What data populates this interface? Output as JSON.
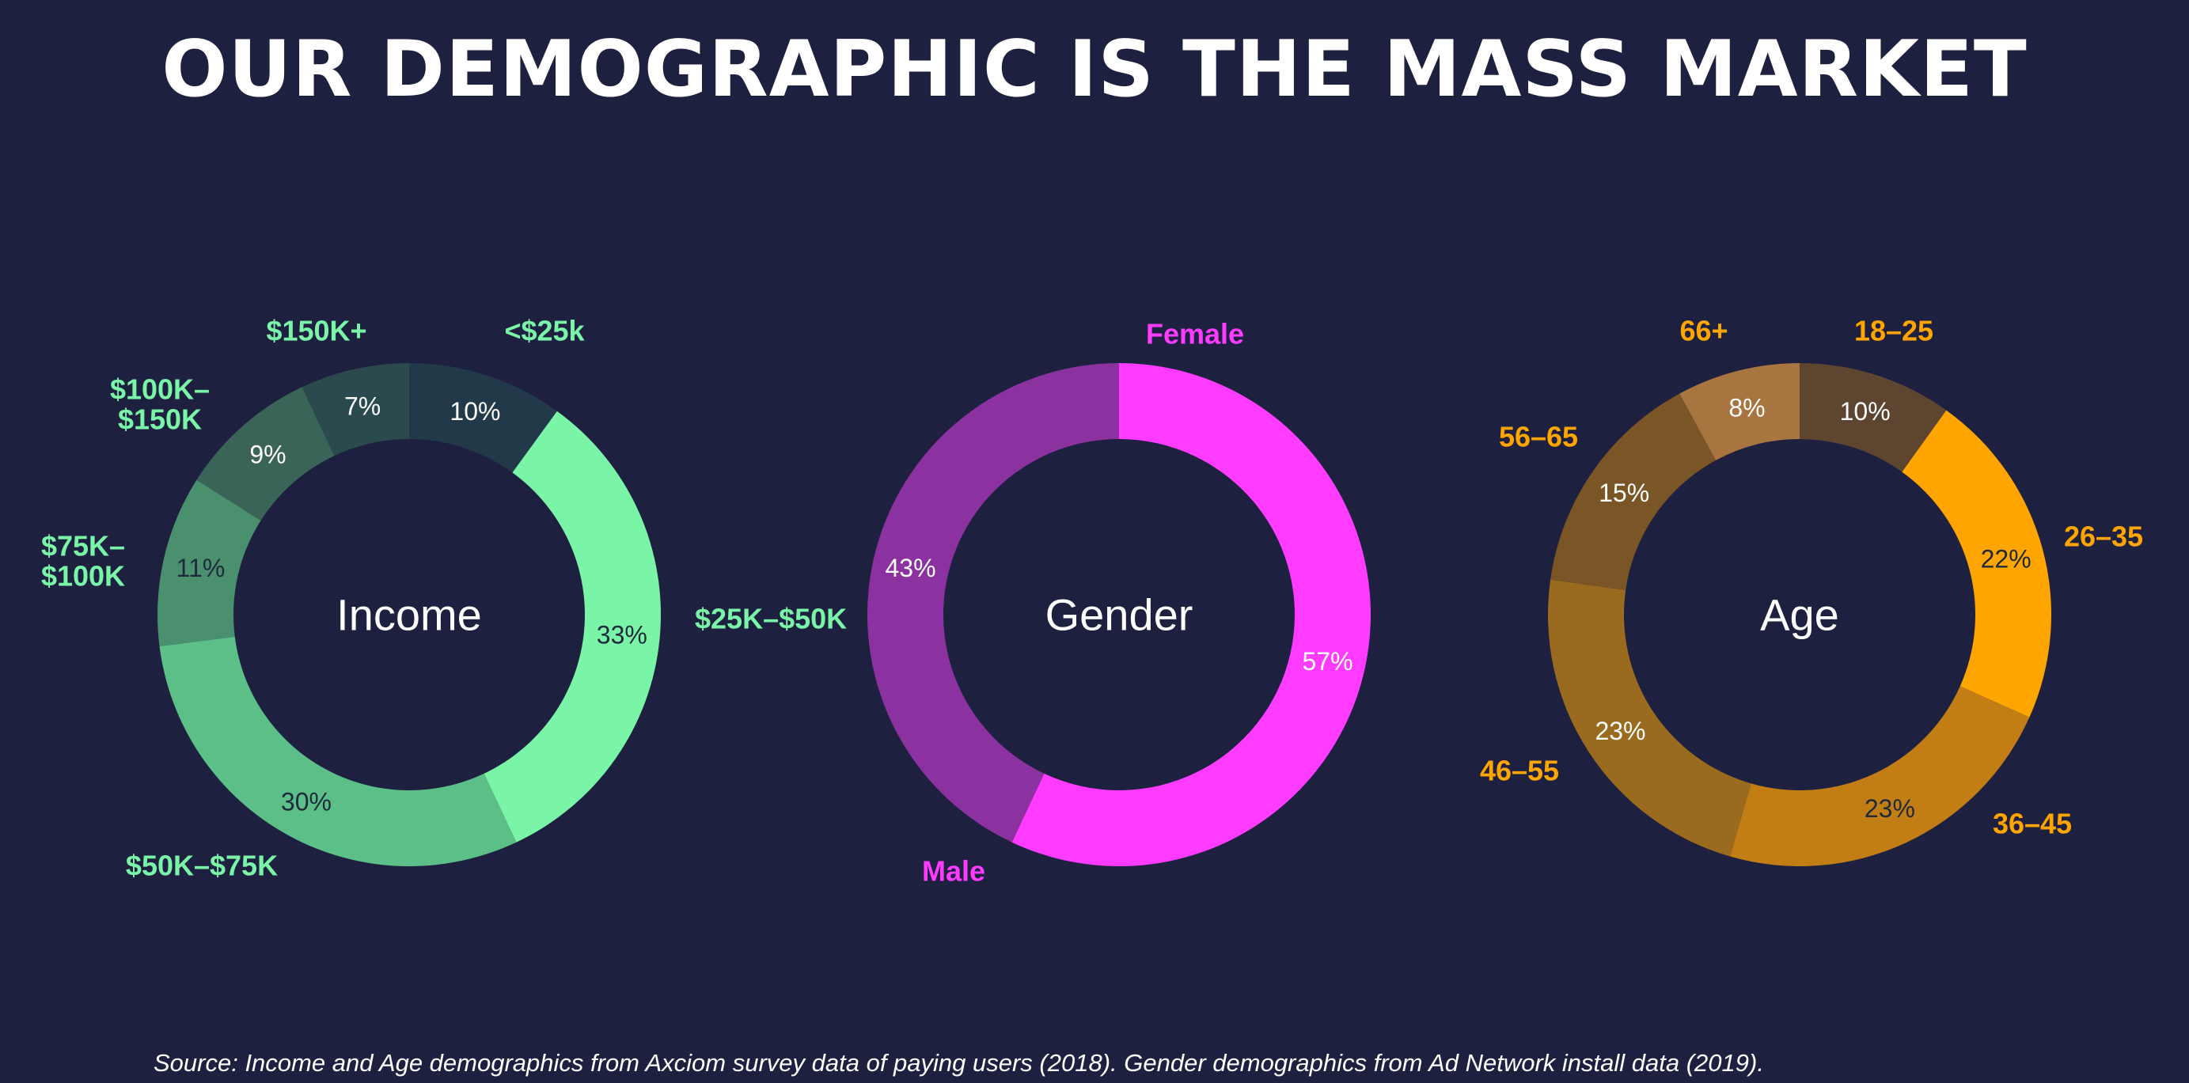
{
  "title": "OUR DEMOGRAPHIC IS THE MASS MARKET",
  "source": "Source: Income and Age demographics from Axciom survey data of paying users (2018).  Gender demographics from Ad Network install data (2019).",
  "chart_data": [
    {
      "type": "pie",
      "donut": true,
      "title": "Income",
      "label_color": "#7af5a8",
      "slices": [
        {
          "label": "<$25k",
          "value": 10,
          "pct_label": "10%",
          "color": "#22394a",
          "pct_color": "#ffffff"
        },
        {
          "label": "$25K–$50K",
          "value": 33,
          "pct_label": "33%",
          "color": "#7af5a8",
          "pct_color": "#1e2a3a"
        },
        {
          "label": "$50K–$75K",
          "value": 30,
          "pct_label": "30%",
          "color": "#5cbf88",
          "pct_color": "#1e2a3a"
        },
        {
          "label": "$75K–$100K",
          "value": 11,
          "pct_label": "11%",
          "color": "#4a8f6e",
          "pct_color": "#1e2a3a"
        },
        {
          "label": "$100K–$150K",
          "value": 9,
          "pct_label": "9%",
          "color": "#3a6458",
          "pct_color": "#ffffff"
        },
        {
          "label": "$150K+",
          "value": 7,
          "pct_label": "7%",
          "color": "#2b4a4d",
          "pct_color": "#ffffff"
        }
      ]
    },
    {
      "type": "pie",
      "donut": true,
      "title": "Gender",
      "label_color": "#ff3bff",
      "slices": [
        {
          "label": "Female",
          "value": 57,
          "pct_label": "57%",
          "color": "#ff3bff",
          "pct_color": "#ffffff"
        },
        {
          "label": "Male",
          "value": 43,
          "pct_label": "43%",
          "color": "#8c32a0",
          "pct_color": "#ffffff"
        }
      ]
    },
    {
      "type": "pie",
      "donut": true,
      "title": "Age",
      "label_color": "#ffa500",
      "slices": [
        {
          "label": "18–25",
          "value": 10,
          "pct_label": "10%",
          "color": "#5e4530",
          "pct_color": "#ffffff"
        },
        {
          "label": "26–35",
          "value": 22,
          "pct_label": "22%",
          "color": "#ffa500",
          "pct_color": "#1e2a3a"
        },
        {
          "label": "36–45",
          "value": 23,
          "pct_label": "23%",
          "color": "#c27e14",
          "pct_color": "#1e2a3a"
        },
        {
          "label": "46–55",
          "value": 23,
          "pct_label": "23%",
          "color": "#9a6a1f",
          "pct_color": "#ffffff"
        },
        {
          "label": "56–65",
          "value": 15,
          "pct_label": "15%",
          "color": "#7a5526",
          "pct_color": "#ffffff"
        },
        {
          "label": "66+",
          "value": 8,
          "pct_label": "8%",
          "color": "#a87440",
          "pct_color": "#ffffff"
        }
      ]
    }
  ]
}
